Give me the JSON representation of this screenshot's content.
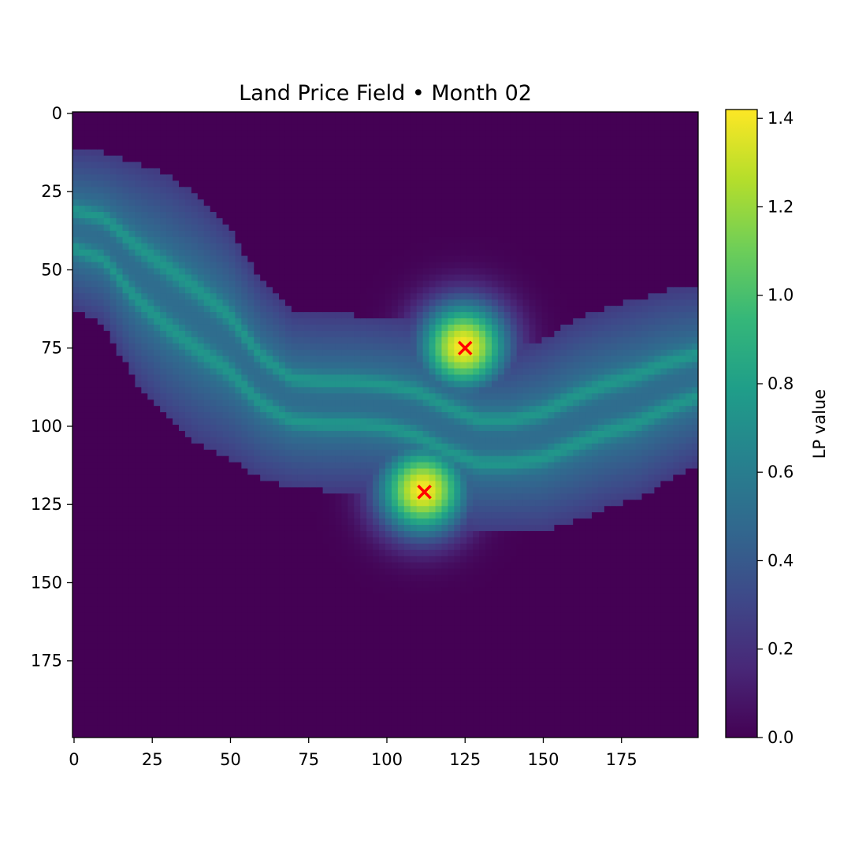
{
  "chart_data": {
    "type": "heatmap",
    "title": "Land Price Field • Month 02",
    "grid_shape": [
      200,
      200
    ],
    "x_ticks": [
      0,
      25,
      50,
      75,
      100,
      125,
      150,
      175
    ],
    "y_ticks": [
      0,
      25,
      50,
      75,
      100,
      125,
      150,
      175
    ],
    "xlim": [
      -0.5,
      199.5
    ],
    "ylim": [
      199.5,
      -0.5
    ],
    "y_axis_inverted": true,
    "grid": false,
    "colormap": "viridis",
    "colorbar": {
      "label": "LP value",
      "range": [
        0.0,
        1.42
      ],
      "ticks": [
        0.0,
        0.2,
        0.4,
        0.6,
        0.8,
        1.0,
        1.2,
        1.4
      ],
      "tick_labels": [
        "0.0",
        "0.2",
        "0.4",
        "0.6",
        "0.8",
        "1.0",
        "1.2",
        "1.4"
      ]
    },
    "band": {
      "description_points": [
        {
          "x": 0,
          "y_top": 12,
          "y_bottom": 63
        },
        {
          "x": 10,
          "y_top": 13,
          "y_bottom": 68
        },
        {
          "x": 20,
          "y_top": 16,
          "y_bottom": 86
        },
        {
          "x": 30,
          "y_top": 20,
          "y_bottom": 98
        },
        {
          "x": 40,
          "y_top": 27,
          "y_bottom": 106
        },
        {
          "x": 50,
          "y_top": 37,
          "y_bottom": 111
        },
        {
          "x": 60,
          "y_top": 54,
          "y_bottom": 117
        },
        {
          "x": 70,
          "y_top": 64,
          "y_bottom": 120
        },
        {
          "x": 80,
          "y_top": 65,
          "y_bottom": 121
        },
        {
          "x": 90,
          "y_top": 65,
          "y_bottom": 121
        },
        {
          "x": 100,
          "y_top": 66,
          "y_bottom": 122
        },
        {
          "x": 110,
          "y_top": 67,
          "y_bottom": 126
        },
        {
          "x": 120,
          "y_top": 72,
          "y_bottom": 131
        },
        {
          "x": 130,
          "y_top": 77,
          "y_bottom": 134
        },
        {
          "x": 140,
          "y_top": 77,
          "y_bottom": 134
        },
        {
          "x": 150,
          "y_top": 73,
          "y_bottom": 134
        },
        {
          "x": 160,
          "y_top": 67,
          "y_bottom": 131
        },
        {
          "x": 170,
          "y_top": 63,
          "y_bottom": 127
        },
        {
          "x": 180,
          "y_top": 60,
          "y_bottom": 124
        },
        {
          "x": 190,
          "y_top": 57,
          "y_bottom": 118
        },
        {
          "x": 199,
          "y_top": 56,
          "y_bottom": 113
        }
      ],
      "edge_value": 0.25,
      "ridge_fractions": [
        0.38,
        0.62
      ],
      "ridge_value": 0.75,
      "center_value": 0.5
    },
    "hotspots": [
      {
        "x": 125,
        "y": 75,
        "peak": 1.42,
        "radius": 14
      },
      {
        "x": 112,
        "y": 121,
        "peak": 1.42,
        "radius": 14
      }
    ],
    "markers": [
      {
        "x": 125,
        "y": 75,
        "symbol": "x",
        "color": "#ff0000"
      },
      {
        "x": 112,
        "y": 121,
        "symbol": "x",
        "color": "#ff0000"
      }
    ],
    "colors": {
      "background_min": "#440154",
      "viridis_stops": [
        "#440154",
        "#482878",
        "#3e4989",
        "#31688e",
        "#26828e",
        "#1f9e89",
        "#35b779",
        "#6ece58",
        "#b5de2b",
        "#fde725"
      ],
      "marker": "#ff0000"
    }
  }
}
